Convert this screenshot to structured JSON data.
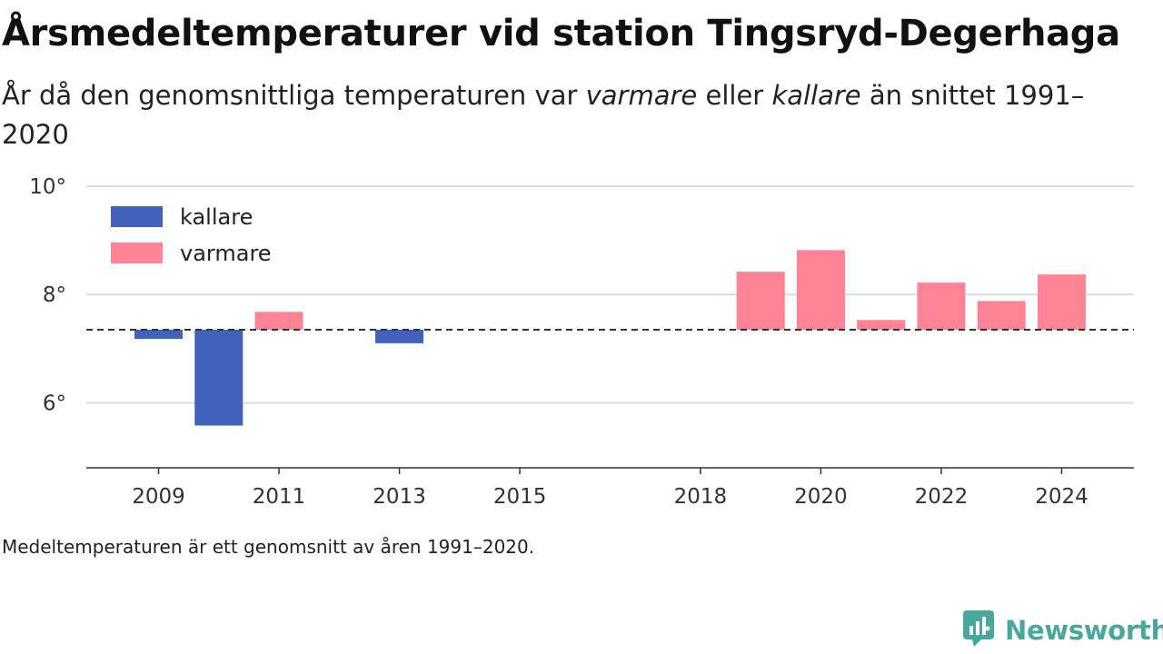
{
  "header": {
    "title": "Årsmedeltemperaturer vid station Tingsryd-Degerhaga",
    "subtitle_part1": "År då den genomsnittliga temperaturen var ",
    "subtitle_em1": "varmare",
    "subtitle_part2": " eller ",
    "subtitle_em2": "kallare",
    "subtitle_part3": " än snittet 1991–2020"
  },
  "footnote": "Medeltemperaturen är ett genomsnitt av åren 1991–2020.",
  "brand": {
    "name": "Newsworthy",
    "icon": "newsworthy-logo-icon"
  },
  "chart_data": {
    "type": "bar",
    "baseline": 7.35,
    "baseline_style": "dashed",
    "ylim": [
      4.8,
      10
    ],
    "yticks": [
      6,
      8,
      10
    ],
    "ytick_labels": [
      "6°",
      "8°",
      "10°"
    ],
    "xlim": [
      2007.8,
      2025.2
    ],
    "xticks": [
      2009,
      2011,
      2013,
      2015,
      2018,
      2020,
      2022,
      2024
    ],
    "xtick_labels": [
      "2009",
      "2011",
      "2013",
      "2015",
      "2018",
      "2020",
      "2022",
      "2024"
    ],
    "grid": true,
    "legend_position": "top-left",
    "legend": [
      {
        "label": "kallare",
        "color": "#4062bb"
      },
      {
        "label": "varmare",
        "color": "#fe8495"
      }
    ],
    "colors": {
      "kallare": "#4062bb",
      "varmare": "#fe8495"
    },
    "bars": [
      {
        "year": 2009,
        "value": 7.18,
        "category": "kallare"
      },
      {
        "year": 2010,
        "value": 5.58,
        "category": "kallare"
      },
      {
        "year": 2011,
        "value": 7.68,
        "category": "varmare"
      },
      {
        "year": 2013,
        "value": 7.1,
        "category": "kallare"
      },
      {
        "year": 2019,
        "value": 8.42,
        "category": "varmare"
      },
      {
        "year": 2020,
        "value": 8.82,
        "category": "varmare"
      },
      {
        "year": 2021,
        "value": 7.53,
        "category": "varmare"
      },
      {
        "year": 2022,
        "value": 8.22,
        "category": "varmare"
      },
      {
        "year": 2023,
        "value": 7.88,
        "category": "varmare"
      },
      {
        "year": 2024,
        "value": 8.37,
        "category": "varmare"
      }
    ]
  }
}
